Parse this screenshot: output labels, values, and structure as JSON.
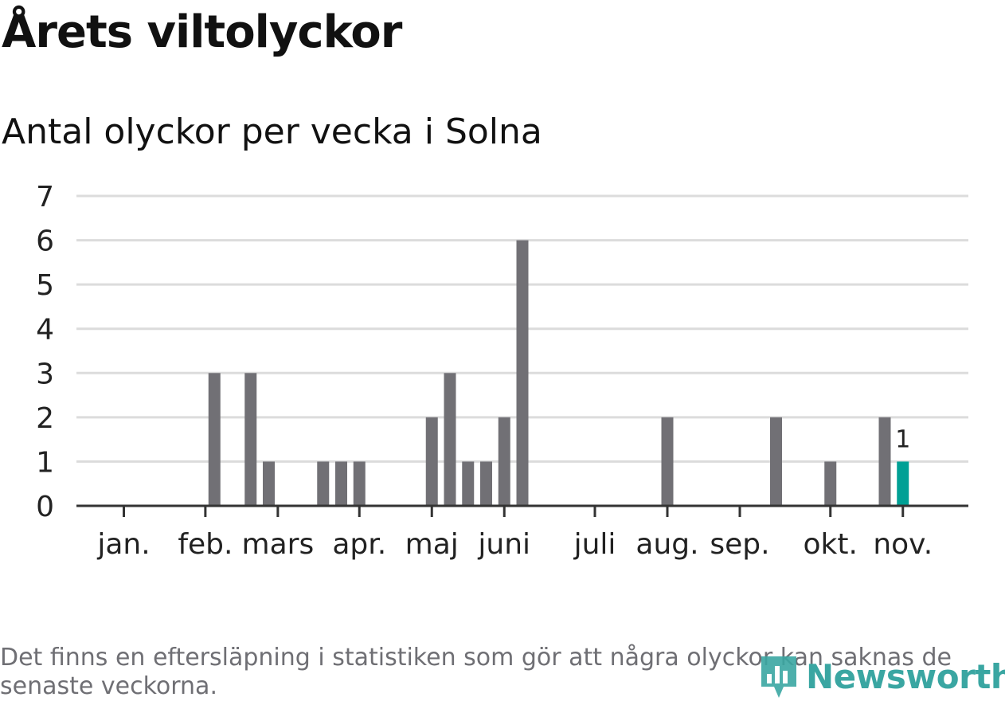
{
  "title": "Årets viltolyckor",
  "subtitle": "Antal olyckor per vecka i Solna",
  "note": "Det finns en eftersläpning i statistiken som gör att några olyckor kan saknas de senaste veckorna.",
  "logo": {
    "text": "Newsworthy",
    "icon": "bar-chart-pin-icon",
    "color": "#3aa6a2"
  },
  "chart_data": {
    "type": "bar",
    "x": [
      1,
      2,
      3,
      4,
      5,
      6,
      7,
      8,
      9,
      10,
      11,
      12,
      13,
      14,
      15,
      16,
      17,
      18,
      19,
      20,
      21,
      22,
      23,
      24,
      25,
      26,
      27,
      28,
      29,
      30,
      31,
      32,
      33,
      34,
      35,
      36,
      37,
      38,
      39,
      40,
      41,
      42,
      43,
      44,
      45,
      46,
      47
    ],
    "values": [
      0,
      0,
      0,
      0,
      0,
      0,
      0,
      3,
      0,
      3,
      1,
      0,
      0,
      1,
      1,
      1,
      0,
      0,
      0,
      2,
      3,
      1,
      1,
      2,
      6,
      0,
      0,
      0,
      0,
      0,
      0,
      0,
      2,
      0,
      0,
      0,
      0,
      0,
      2,
      0,
      0,
      1,
      0,
      0,
      2,
      1,
      0
    ],
    "highlight_index": 45,
    "highlight_label": "1",
    "bar_color": "#717075",
    "highlight_color": "#00a095",
    "ylim": [
      0,
      7
    ],
    "yticks": [
      0,
      1,
      2,
      3,
      4,
      5,
      6,
      7
    ],
    "month_labels": [
      "jan.",
      "feb.",
      "mars",
      "apr.",
      "maj",
      "juni",
      "juli",
      "aug.",
      "sep.",
      "okt.",
      "nov."
    ],
    "month_ticks": [
      3.0,
      7.5,
      11.5,
      16.0,
      20.0,
      24.0,
      29.0,
      33.0,
      37.0,
      42.0,
      46.0
    ],
    "xlabel": "",
    "ylabel": "",
    "grid": true
  }
}
